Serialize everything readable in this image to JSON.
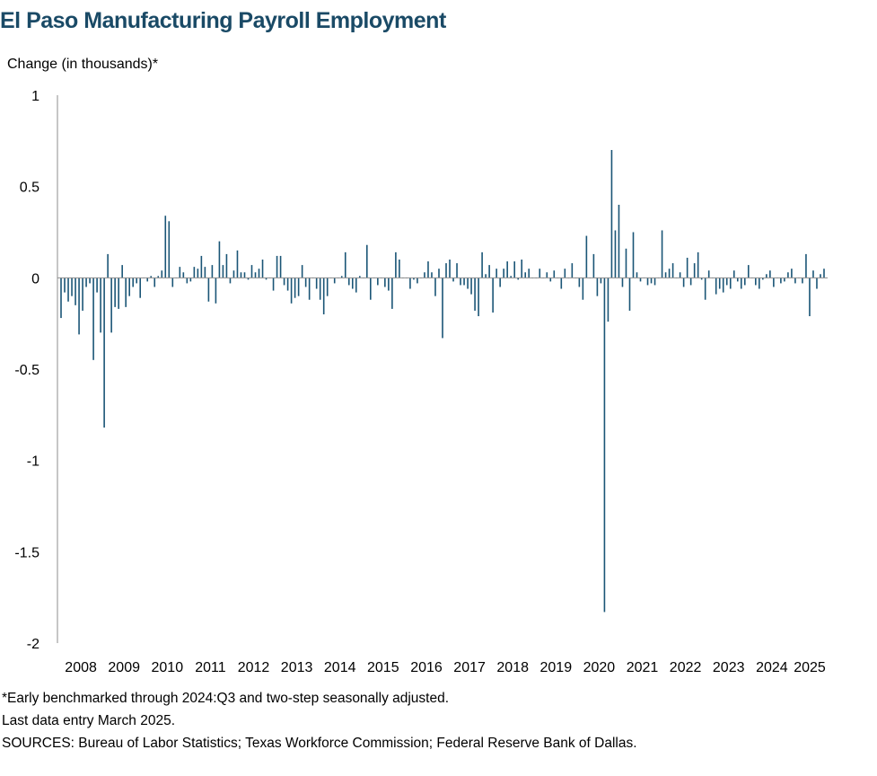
{
  "chart_data": {
    "type": "bar",
    "title": "El Paso Manufacturing Payroll Employment",
    "ylabel": "Change (in thousands)*",
    "xlabel": "",
    "ylim": [
      -2,
      1
    ],
    "yticks": [
      "1",
      "0.5",
      "0",
      "-0.5",
      "-1",
      "-1.5",
      "-2"
    ],
    "ytick_values": [
      1,
      0.5,
      0,
      -0.5,
      -1,
      -1.5,
      -2
    ],
    "xticks": [
      "2008",
      "2009",
      "2010",
      "2011",
      "2012",
      "2013",
      "2014",
      "2015",
      "2016",
      "2017",
      "2018",
      "2019",
      "2020",
      "2021",
      "2022",
      "2023",
      "2024",
      "2025"
    ],
    "x_start": "2008-01",
    "x_end": "2025-03",
    "bar_color": "#1a5576",
    "values": [
      -0.22,
      -0.08,
      -0.13,
      -0.1,
      -0.15,
      -0.31,
      -0.18,
      -0.05,
      -0.03,
      -0.45,
      -0.08,
      -0.3,
      -0.82,
      0.13,
      -0.3,
      -0.16,
      -0.17,
      0.07,
      -0.16,
      -0.1,
      -0.05,
      -0.03,
      -0.11,
      0.0,
      -0.02,
      0.01,
      -0.05,
      0.01,
      0.04,
      0.34,
      0.31,
      -0.05,
      0.0,
      0.06,
      0.03,
      -0.03,
      -0.02,
      0.06,
      0.05,
      0.12,
      0.06,
      -0.13,
      0.07,
      -0.14,
      0.2,
      0.07,
      0.13,
      -0.03,
      0.04,
      0.15,
      0.03,
      0.03,
      -0.01,
      0.07,
      0.03,
      0.05,
      0.1,
      -0.01,
      0.0,
      -0.07,
      0.12,
      0.12,
      -0.04,
      -0.07,
      -0.14,
      -0.11,
      -0.1,
      0.07,
      -0.05,
      -0.12,
      0.0,
      -0.06,
      -0.12,
      -0.2,
      -0.1,
      0.0,
      -0.03,
      0.0,
      0.01,
      0.14,
      -0.04,
      -0.06,
      -0.08,
      0.01,
      0.0,
      0.18,
      -0.12,
      0.0,
      -0.04,
      0.0,
      -0.05,
      -0.07,
      -0.17,
      0.14,
      0.1,
      0.0,
      0.0,
      -0.06,
      -0.01,
      -0.03,
      0.0,
      0.03,
      0.09,
      0.03,
      -0.1,
      0.05,
      -0.33,
      0.08,
      0.1,
      -0.02,
      0.08,
      -0.04,
      -0.04,
      -0.06,
      -0.09,
      -0.18,
      -0.21,
      0.14,
      0.02,
      0.07,
      -0.19,
      0.05,
      -0.05,
      0.05,
      0.09,
      0.01,
      0.09,
      -0.01,
      0.1,
      0.03,
      0.05,
      0.0,
      0.0,
      0.05,
      0.0,
      0.03,
      -0.02,
      0.04,
      0.0,
      -0.06,
      0.05,
      0.0,
      0.08,
      0.0,
      -0.05,
      -0.12,
      0.23,
      0.0,
      0.13,
      -0.1,
      -0.03,
      -1.83,
      -0.24,
      0.7,
      0.26,
      0.4,
      -0.05,
      0.16,
      -0.18,
      0.25,
      0.03,
      -0.02,
      0.0,
      -0.04,
      -0.03,
      -0.04,
      0.0,
      0.26,
      0.03,
      0.05,
      0.08,
      0.0,
      0.03,
      -0.05,
      0.11,
      -0.04,
      0.08,
      0.14,
      -0.01,
      -0.12,
      0.04,
      0.0,
      -0.09,
      -0.06,
      -0.08,
      -0.04,
      -0.06,
      0.04,
      -0.02,
      -0.06,
      -0.04,
      0.07,
      0.0,
      -0.04,
      -0.06,
      -0.01,
      0.02,
      0.04,
      -0.05,
      0.0,
      -0.03,
      -0.02,
      0.03,
      0.05,
      -0.03,
      0.0,
      -0.03,
      0.13,
      -0.21,
      0.04,
      -0.06,
      0.02,
      0.05
    ]
  },
  "notes": {
    "line1": "*Early benchmarked through 2024:Q3 and two-step seasonally adjusted.",
    "line2": "Last data entry March 2025.",
    "line3": "SOURCES: Bureau of Labor Statistics; Texas Workforce Commission; Federal Reserve Bank of Dallas."
  }
}
